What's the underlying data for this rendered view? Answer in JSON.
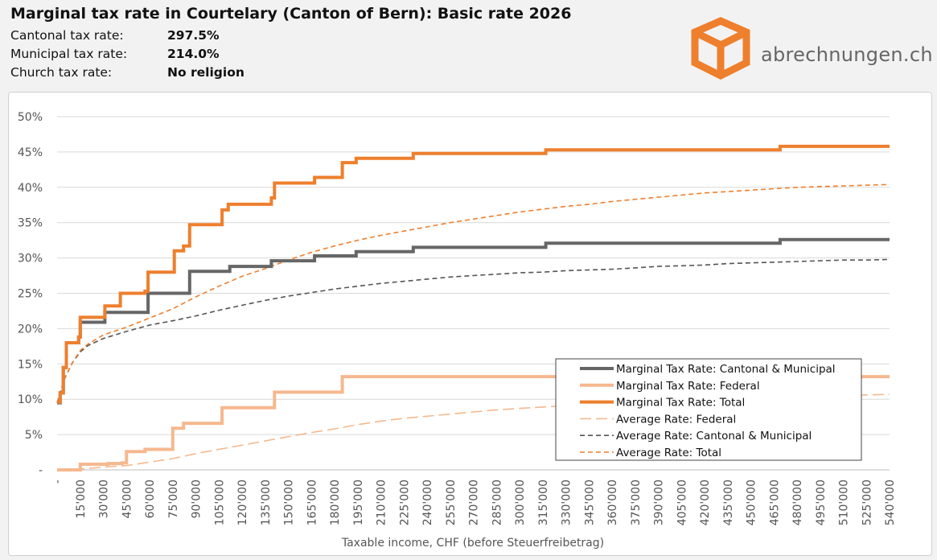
{
  "header": {
    "title": "Marginal tax rate in Courtelary (Canton of Bern): Basic rate 2026",
    "rows": [
      {
        "label": "Cantonal tax rate:",
        "value": "297.5%"
      },
      {
        "label": "Municipal tax rate:",
        "value": "214.0%"
      },
      {
        "label": "Church tax rate:",
        "value": "No religion"
      }
    ]
  },
  "logo": {
    "text": "abrechnungen.ch",
    "color": "#ee7f2d",
    "icon": "box-icon"
  },
  "chart_data": {
    "type": "line",
    "xlabel": "Taxable income, CHF (before Steuerfreibetrag)",
    "ylabel": "",
    "xlim": [
      0,
      540000
    ],
    "ylim": [
      0,
      50
    ],
    "grid": true,
    "legend_position": "lower-right",
    "y_ticks": [
      {
        "value": 0,
        "label": "-"
      },
      {
        "value": 5,
        "label": "5%"
      },
      {
        "value": 10,
        "label": "10%"
      },
      {
        "value": 15,
        "label": "15%"
      },
      {
        "value": 20,
        "label": "20%"
      },
      {
        "value": 25,
        "label": "25%"
      },
      {
        "value": 30,
        "label": "30%"
      },
      {
        "value": 35,
        "label": "35%"
      },
      {
        "value": 40,
        "label": "40%"
      },
      {
        "value": 45,
        "label": "45%"
      },
      {
        "value": 50,
        "label": "50%"
      }
    ],
    "x_ticks": [
      {
        "value": 0,
        "label": "-"
      },
      {
        "value": 15000,
        "label": "15'000"
      },
      {
        "value": 30000,
        "label": "30'000"
      },
      {
        "value": 45000,
        "label": "45'000"
      },
      {
        "value": 60000,
        "label": "60'000"
      },
      {
        "value": 75000,
        "label": "75'000"
      },
      {
        "value": 90000,
        "label": "90'000"
      },
      {
        "value": 105000,
        "label": "105'000"
      },
      {
        "value": 120000,
        "label": "120'000"
      },
      {
        "value": 135000,
        "label": "135'000"
      },
      {
        "value": 150000,
        "label": "150'000"
      },
      {
        "value": 165000,
        "label": "165'000"
      },
      {
        "value": 180000,
        "label": "180'000"
      },
      {
        "value": 195000,
        "label": "195'000"
      },
      {
        "value": 210000,
        "label": "210'000"
      },
      {
        "value": 225000,
        "label": "225'000"
      },
      {
        "value": 240000,
        "label": "240'000"
      },
      {
        "value": 255000,
        "label": "255'000"
      },
      {
        "value": 270000,
        "label": "270'000"
      },
      {
        "value": 285000,
        "label": "285'000"
      },
      {
        "value": 300000,
        "label": "300'000"
      },
      {
        "value": 315000,
        "label": "315'000"
      },
      {
        "value": 330000,
        "label": "330'000"
      },
      {
        "value": 345000,
        "label": "345'000"
      },
      {
        "value": 360000,
        "label": "360'000"
      },
      {
        "value": 375000,
        "label": "375'000"
      },
      {
        "value": 390000,
        "label": "390'000"
      },
      {
        "value": 405000,
        "label": "405'000"
      },
      {
        "value": 420000,
        "label": "420'000"
      },
      {
        "value": 435000,
        "label": "435'000"
      },
      {
        "value": 450000,
        "label": "450'000"
      },
      {
        "value": 465000,
        "label": "465'000"
      },
      {
        "value": 480000,
        "label": "480'000"
      },
      {
        "value": 495000,
        "label": "495'000"
      },
      {
        "value": 510000,
        "label": "510'000"
      },
      {
        "value": 525000,
        "label": "525'000"
      },
      {
        "value": 540000,
        "label": "540'000"
      }
    ],
    "series": [
      {
        "name": "Marginal Tax Rate: Cantonal & Municipal",
        "color": "#666666",
        "dash": "solid",
        "step": true,
        "points": [
          [
            0,
            9.5
          ],
          [
            2000,
            10.9
          ],
          [
            4000,
            14.5
          ],
          [
            6000,
            18.0
          ],
          [
            14000,
            18.8
          ],
          [
            15000,
            20.9
          ],
          [
            31000,
            22.3
          ],
          [
            59000,
            25.0
          ],
          [
            86000,
            28.1
          ],
          [
            112000,
            28.8
          ],
          [
            139000,
            29.6
          ],
          [
            167000,
            30.3
          ],
          [
            194000,
            30.9
          ],
          [
            231000,
            31.5
          ],
          [
            317000,
            32.1
          ],
          [
            469000,
            32.6
          ],
          [
            540000,
            32.6
          ]
        ]
      },
      {
        "name": "Marginal Tax Rate: Federal",
        "color": "#f5b88f",
        "dash": "solid",
        "step": true,
        "points": [
          [
            0,
            0
          ],
          [
            15000,
            0.8
          ],
          [
            33000,
            0.9
          ],
          [
            42000,
            1.0
          ],
          [
            45000,
            2.6
          ],
          [
            57000,
            2.9
          ],
          [
            75000,
            5.9
          ],
          [
            82000,
            6.6
          ],
          [
            107000,
            8.8
          ],
          [
            141000,
            11.0
          ],
          [
            185000,
            13.2
          ],
          [
            540000,
            13.2
          ]
        ]
      },
      {
        "name": "Marginal Tax Rate: Total",
        "color": "#ee7f2d",
        "dash": "solid",
        "step": true,
        "points": [
          [
            0,
            9.6
          ],
          [
            2000,
            10.9
          ],
          [
            4000,
            14.5
          ],
          [
            6000,
            18.0
          ],
          [
            14000,
            18.8
          ],
          [
            15000,
            21.6
          ],
          [
            31000,
            23.2
          ],
          [
            41000,
            25.0
          ],
          [
            57000,
            25.3
          ],
          [
            59000,
            28.0
          ],
          [
            76000,
            31.0
          ],
          [
            82000,
            31.7
          ],
          [
            86000,
            34.7
          ],
          [
            107000,
            36.8
          ],
          [
            111000,
            37.6
          ],
          [
            139000,
            38.5
          ],
          [
            141000,
            40.6
          ],
          [
            167000,
            41.4
          ],
          [
            185000,
            43.5
          ],
          [
            194000,
            44.1
          ],
          [
            231000,
            44.8
          ],
          [
            317000,
            45.3
          ],
          [
            469000,
            45.8
          ],
          [
            540000,
            45.8
          ]
        ]
      },
      {
        "name": "Average Rate: Federal",
        "color": "#f5b88f",
        "dash": "long-dash",
        "step": false,
        "points": [
          [
            0,
            0
          ],
          [
            15000,
            0.1
          ],
          [
            30000,
            0.4
          ],
          [
            45000,
            0.6
          ],
          [
            60000,
            1.1
          ],
          [
            75000,
            1.6
          ],
          [
            90000,
            2.3
          ],
          [
            105000,
            2.9
          ],
          [
            120000,
            3.5
          ],
          [
            135000,
            4.1
          ],
          [
            150000,
            4.7
          ],
          [
            165000,
            5.3
          ],
          [
            180000,
            5.8
          ],
          [
            195000,
            6.4
          ],
          [
            210000,
            6.9
          ],
          [
            225000,
            7.3
          ],
          [
            240000,
            7.6
          ],
          [
            255000,
            7.9
          ],
          [
            270000,
            8.2
          ],
          [
            285000,
            8.5
          ],
          [
            300000,
            8.7
          ],
          [
            315000,
            8.9
          ],
          [
            330000,
            9.1
          ],
          [
            345000,
            9.3
          ],
          [
            360000,
            9.5
          ],
          [
            375000,
            9.6
          ],
          [
            390000,
            9.7
          ],
          [
            405000,
            9.9
          ],
          [
            420000,
            10.0
          ],
          [
            435000,
            10.1
          ],
          [
            450000,
            10.2
          ],
          [
            465000,
            10.3
          ],
          [
            480000,
            10.4
          ],
          [
            495000,
            10.5
          ],
          [
            510000,
            10.6
          ],
          [
            525000,
            10.6
          ],
          [
            540000,
            10.7
          ]
        ]
      },
      {
        "name": "Average Rate: Cantonal & Municipal",
        "color": "#555555",
        "dash": "dash",
        "step": false,
        "points": [
          [
            0,
            9.5
          ],
          [
            2000,
            10.9
          ],
          [
            5000,
            13.0
          ],
          [
            10000,
            15.2
          ],
          [
            15000,
            16.7
          ],
          [
            20000,
            17.6
          ],
          [
            30000,
            18.6
          ],
          [
            45000,
            19.6
          ],
          [
            60000,
            20.5
          ],
          [
            75000,
            21.1
          ],
          [
            90000,
            21.8
          ],
          [
            105000,
            22.6
          ],
          [
            120000,
            23.3
          ],
          [
            135000,
            24.0
          ],
          [
            150000,
            24.6
          ],
          [
            165000,
            25.1
          ],
          [
            180000,
            25.6
          ],
          [
            195000,
            26.0
          ],
          [
            210000,
            26.4
          ],
          [
            225000,
            26.7
          ],
          [
            240000,
            27.0
          ],
          [
            255000,
            27.3
          ],
          [
            270000,
            27.5
          ],
          [
            285000,
            27.7
          ],
          [
            300000,
            27.9
          ],
          [
            315000,
            28.0
          ],
          [
            330000,
            28.2
          ],
          [
            345000,
            28.3
          ],
          [
            360000,
            28.4
          ],
          [
            375000,
            28.6
          ],
          [
            390000,
            28.8
          ],
          [
            405000,
            28.9
          ],
          [
            420000,
            29.0
          ],
          [
            435000,
            29.2
          ],
          [
            450000,
            29.3
          ],
          [
            465000,
            29.4
          ],
          [
            480000,
            29.5
          ],
          [
            495000,
            29.6
          ],
          [
            510000,
            29.7
          ],
          [
            525000,
            29.7
          ],
          [
            540000,
            29.8
          ]
        ]
      },
      {
        "name": "Average Rate: Total",
        "color": "#ee7f2d",
        "dash": "dash",
        "step": false,
        "points": [
          [
            0,
            9.5
          ],
          [
            2000,
            10.9
          ],
          [
            5000,
            13.0
          ],
          [
            10000,
            15.2
          ],
          [
            15000,
            16.9
          ],
          [
            20000,
            17.8
          ],
          [
            30000,
            19.1
          ],
          [
            45000,
            20.2
          ],
          [
            60000,
            21.5
          ],
          [
            75000,
            22.8
          ],
          [
            90000,
            24.5
          ],
          [
            105000,
            26.0
          ],
          [
            120000,
            27.4
          ],
          [
            135000,
            28.5
          ],
          [
            150000,
            29.7
          ],
          [
            165000,
            30.8
          ],
          [
            180000,
            31.7
          ],
          [
            195000,
            32.5
          ],
          [
            210000,
            33.2
          ],
          [
            225000,
            33.8
          ],
          [
            240000,
            34.4
          ],
          [
            255000,
            35.0
          ],
          [
            270000,
            35.5
          ],
          [
            285000,
            36.0
          ],
          [
            300000,
            36.5
          ],
          [
            315000,
            36.9
          ],
          [
            330000,
            37.3
          ],
          [
            345000,
            37.6
          ],
          [
            360000,
            38.0
          ],
          [
            375000,
            38.3
          ],
          [
            390000,
            38.6
          ],
          [
            405000,
            38.9
          ],
          [
            420000,
            39.2
          ],
          [
            435000,
            39.4
          ],
          [
            450000,
            39.6
          ],
          [
            465000,
            39.8
          ],
          [
            480000,
            40.0
          ],
          [
            495000,
            40.1
          ],
          [
            510000,
            40.2
          ],
          [
            525000,
            40.3
          ],
          [
            540000,
            40.4
          ]
        ]
      }
    ]
  }
}
